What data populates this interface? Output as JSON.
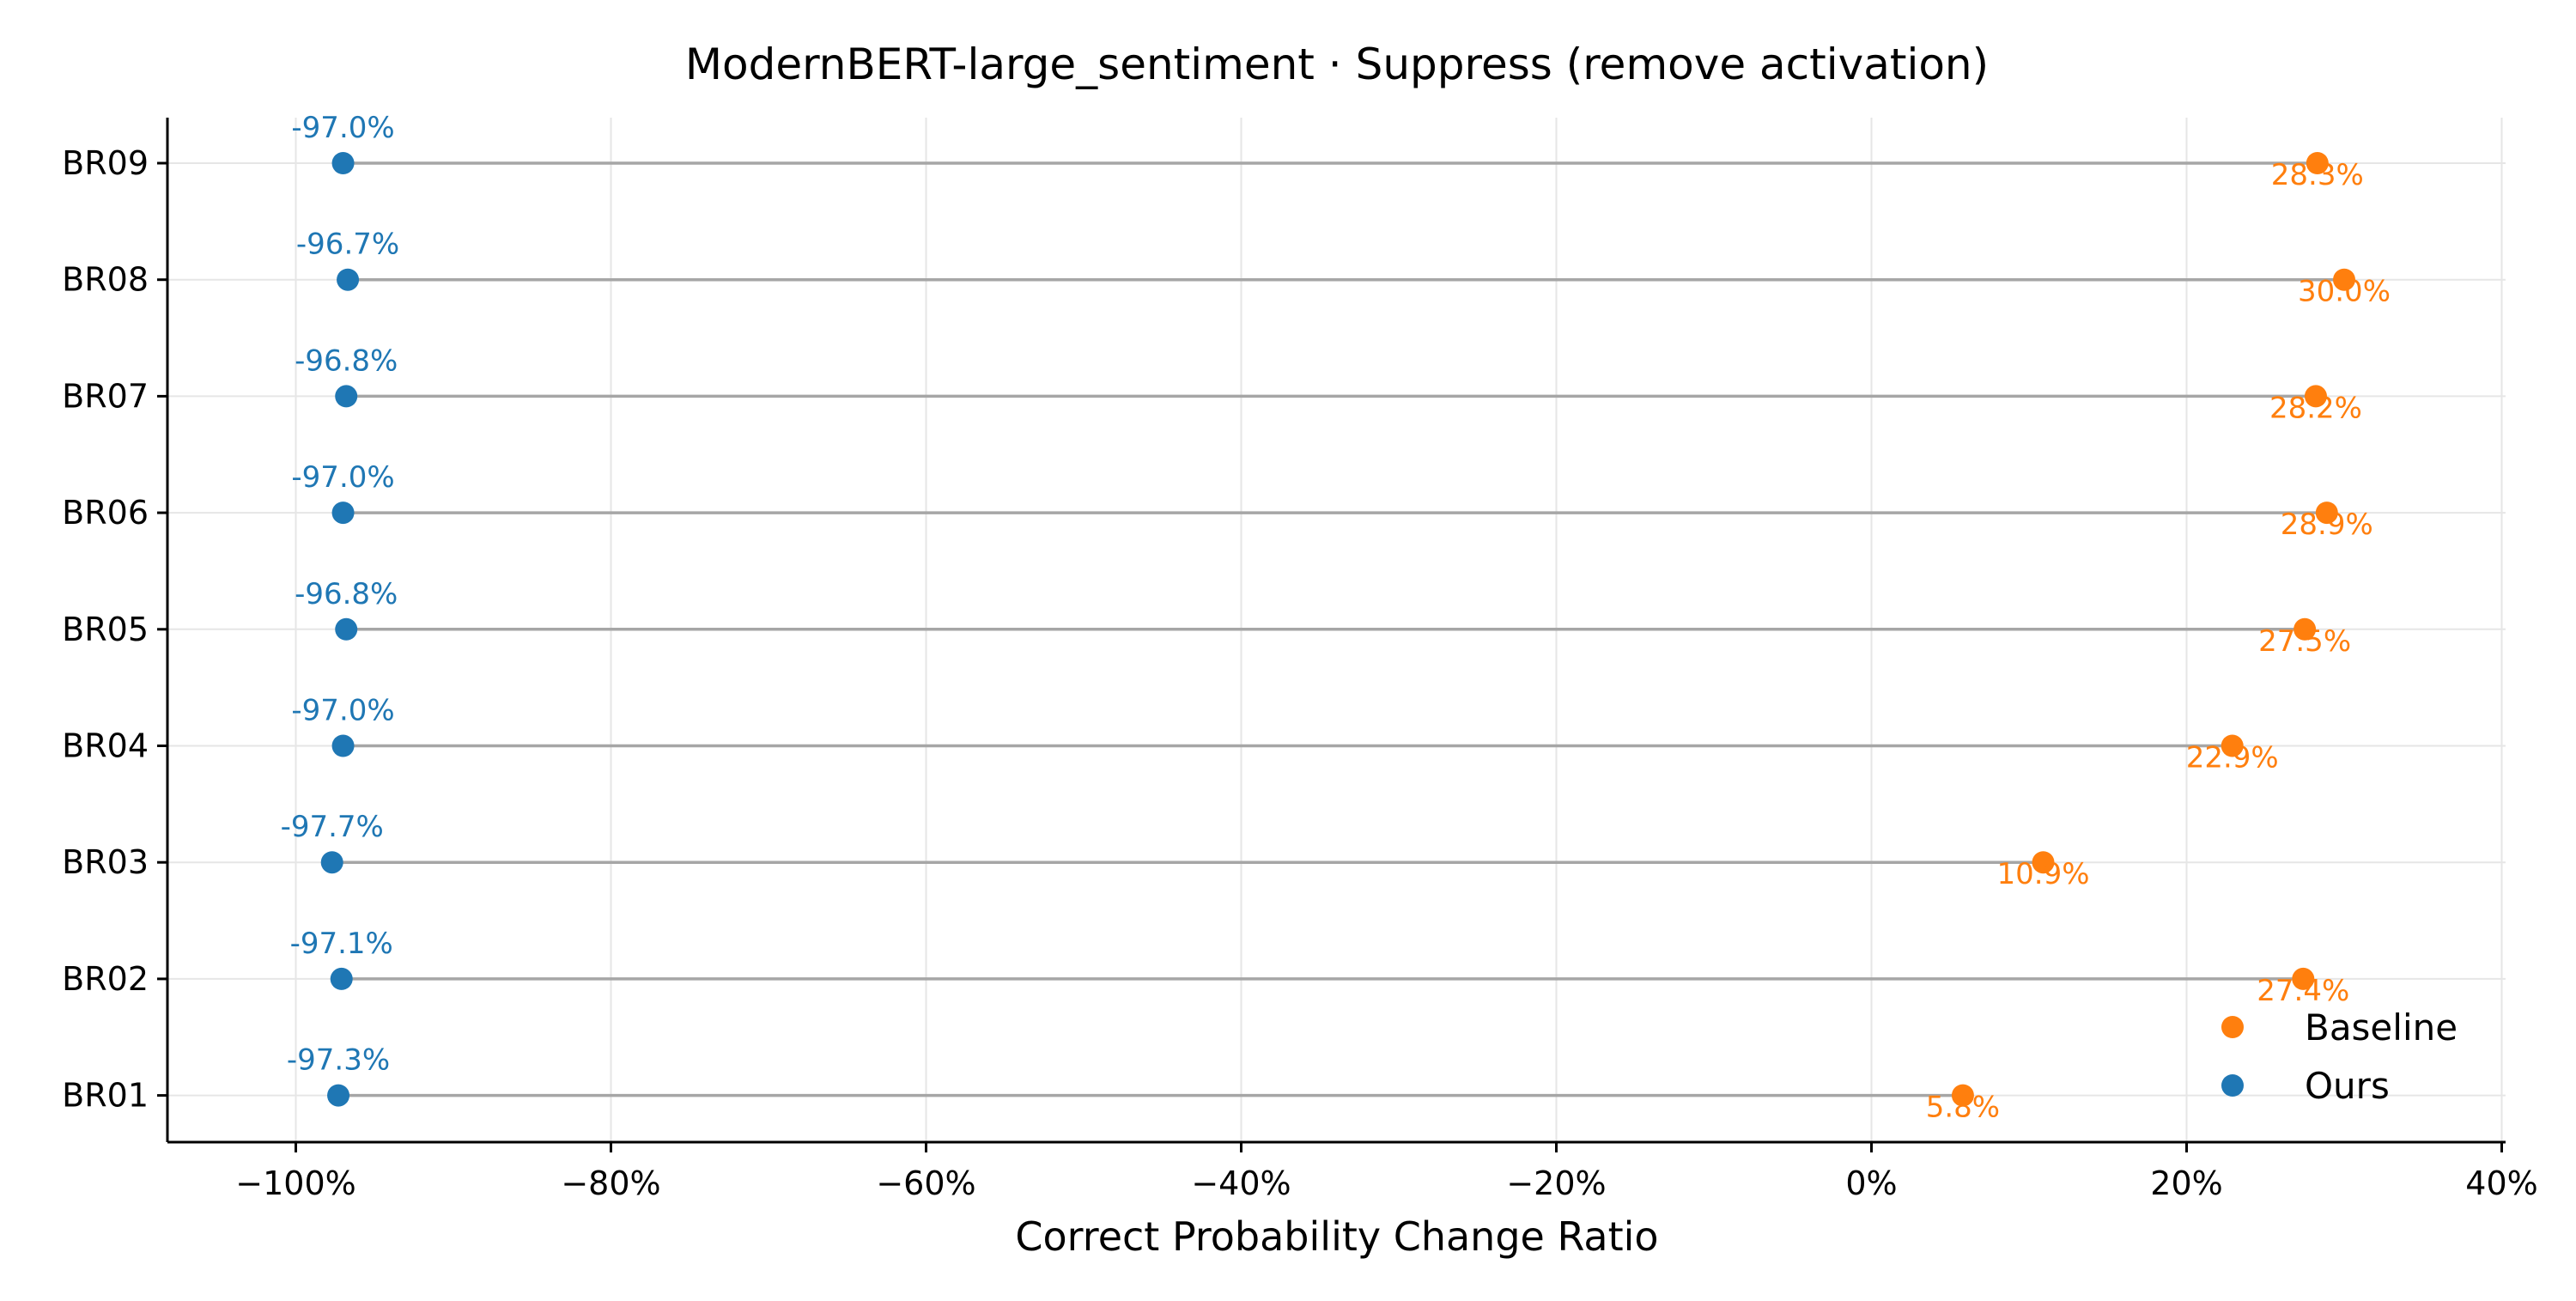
{
  "chart_data": {
    "type": "dot-plot",
    "title": "ModernBERT-large_sentiment · Suppress (remove activation)",
    "xlabel": "Correct Probability Change Ratio",
    "ylabel": "",
    "xlim": [
      -108,
      40
    ],
    "xticks": [
      -100,
      -80,
      -60,
      -40,
      -20,
      0,
      20,
      40
    ],
    "xtick_labels": [
      "−100%",
      "−80%",
      "−60%",
      "−40%",
      "−20%",
      "0%",
      "20%",
      "40%"
    ],
    "categories": [
      "BR09",
      "BR08",
      "BR07",
      "BR06",
      "BR05",
      "BR04",
      "BR03",
      "BR02",
      "BR01"
    ],
    "grid": true,
    "legend_position": "lower-right",
    "series": [
      {
        "name": "Baseline",
        "color": "#ff7f0e",
        "values": [
          28.3,
          30.0,
          28.2,
          28.9,
          27.5,
          22.9,
          10.9,
          27.4,
          5.8
        ],
        "labels": [
          "28.3%",
          "30.0%",
          "28.2%",
          "28.9%",
          "27.5%",
          "22.9%",
          "10.9%",
          "27.4%",
          "5.8%"
        ]
      },
      {
        "name": "Ours",
        "color": "#1f77b4",
        "values": [
          -97.0,
          -96.7,
          -96.8,
          -97.0,
          -96.8,
          -97.0,
          -97.7,
          -97.1,
          -97.3
        ],
        "labels": [
          "-97.0%",
          "-96.7%",
          "-96.8%",
          "-97.0%",
          "-96.8%",
          "-97.0%",
          "-97.7%",
          "-97.1%",
          "-97.3%"
        ]
      }
    ],
    "connector_color": "#a6a6a6",
    "grid_color": "#e6e6e6"
  }
}
